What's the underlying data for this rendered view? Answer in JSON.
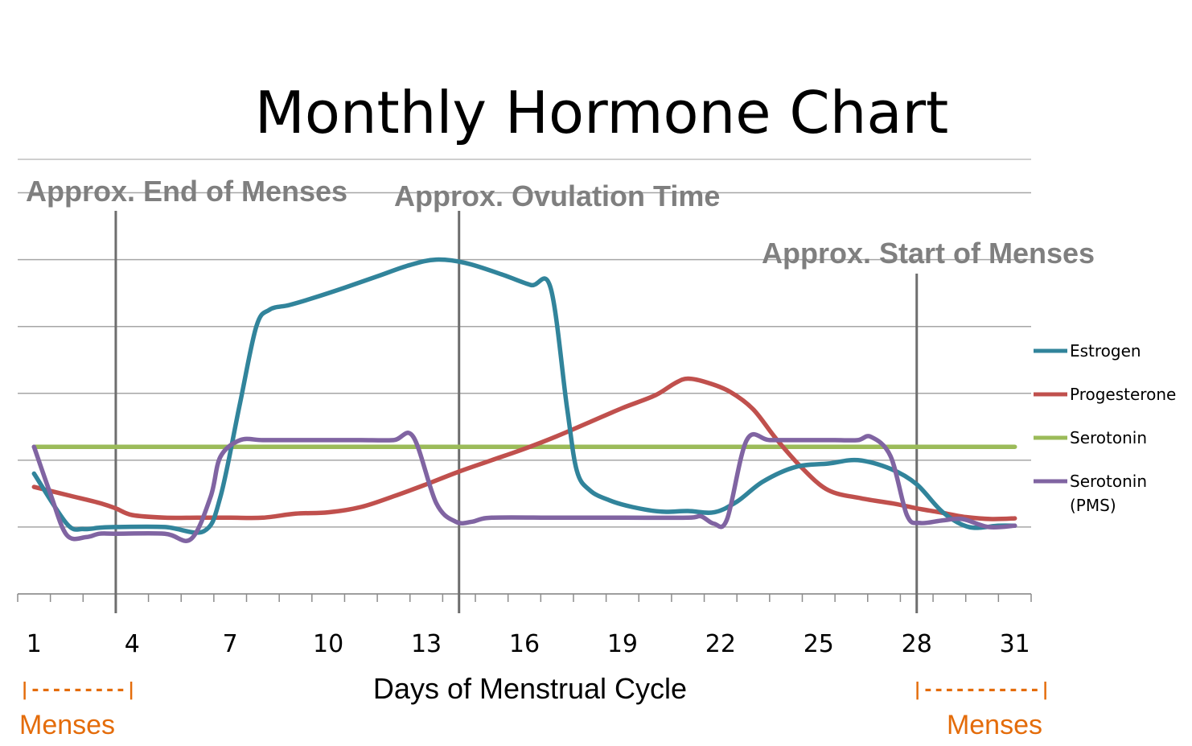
{
  "chart_data": {
    "type": "line",
    "title": "Monthly Hormone Chart",
    "xlabel": "Days of Menstrual Cycle",
    "ylabel": "",
    "xlim": [
      0.5,
      31.5
    ],
    "ylim": [
      0,
      6.5
    ],
    "xticks": [
      1,
      4,
      7,
      10,
      13,
      16,
      19,
      22,
      25,
      28,
      31
    ],
    "grid": true,
    "legend_position": "right",
    "series": [
      {
        "name": "Estrogen",
        "color": "#31849b",
        "x": [
          1,
          2,
          2.5,
          3,
          3.5,
          5,
          6.2,
          6.7,
          7.3,
          7.8,
          8.2,
          8.8,
          9.5,
          10.5,
          11.5,
          12.5,
          13.3,
          14.2,
          15.3,
          16.2,
          16.8,
          17.3,
          17.6,
          18,
          18.6,
          19.3,
          20.2,
          21,
          21.8,
          22.5,
          23.3,
          24.3,
          25.3,
          26.2,
          27.2,
          28,
          28.8,
          29.6,
          30.5,
          31
        ],
        "values": [
          1.8,
          1.05,
          0.97,
          0.99,
          1.0,
          1.0,
          0.94,
          1.45,
          2.85,
          4.0,
          4.25,
          4.32,
          4.42,
          4.58,
          4.75,
          4.92,
          5.0,
          4.95,
          4.78,
          4.62,
          4.58,
          2.8,
          1.85,
          1.55,
          1.4,
          1.3,
          1.23,
          1.24,
          1.22,
          1.38,
          1.68,
          1.9,
          1.95,
          2.0,
          1.87,
          1.64,
          1.22,
          1.0,
          1.02,
          1.02
        ]
      },
      {
        "name": "Progesterone",
        "color": "#c0504d",
        "x": [
          1,
          2,
          3,
          3.5,
          4,
          5,
          6,
          7,
          8,
          9,
          10,
          11,
          12,
          13,
          14,
          15,
          16,
          17,
          18,
          19,
          20,
          20.6,
          21,
          21.6,
          22.3,
          23,
          23.7,
          24.5,
          25.3,
          26.3,
          27.3,
          28,
          28.7,
          29.5,
          30.3,
          31
        ],
        "values": [
          1.6,
          1.48,
          1.36,
          1.28,
          1.18,
          1.14,
          1.14,
          1.14,
          1.14,
          1.2,
          1.22,
          1.3,
          1.46,
          1.64,
          1.83,
          2.0,
          2.17,
          2.36,
          2.57,
          2.78,
          2.97,
          3.15,
          3.22,
          3.16,
          3.02,
          2.76,
          2.32,
          1.88,
          1.55,
          1.43,
          1.35,
          1.28,
          1.22,
          1.15,
          1.12,
          1.13
        ]
      },
      {
        "name": "Serotonin",
        "color": "#9bbb59",
        "x": [
          1,
          31
        ],
        "values": [
          2.2,
          2.2
        ]
      },
      {
        "name": "Serotonin\n(PMS)",
        "color": "#8064a2",
        "x": [
          1,
          1.5,
          2,
          2.6,
          3,
          3.5,
          5,
          5.8,
          6.4,
          6.7,
          7.3,
          8,
          9,
          10,
          11,
          12,
          12.6,
          13.3,
          13.9,
          14.4,
          15,
          17,
          19,
          21,
          21.4,
          21.8,
          22.2,
          22.8,
          23.5,
          24.5,
          25.5,
          26.2,
          26.6,
          27.2,
          27.7,
          28.1,
          28.8,
          29.4,
          30.2,
          31
        ],
        "values": [
          2.2,
          1.5,
          0.88,
          0.85,
          0.9,
          0.9,
          0.9,
          0.82,
          1.45,
          2.05,
          2.3,
          2.3,
          2.3,
          2.3,
          2.3,
          2.3,
          2.35,
          1.36,
          1.08,
          1.08,
          1.14,
          1.14,
          1.14,
          1.14,
          1.16,
          1.05,
          1.12,
          2.3,
          2.3,
          2.3,
          2.3,
          2.3,
          2.35,
          2.06,
          1.18,
          1.06,
          1.1,
          1.12,
          1.0,
          1.02
        ]
      }
    ],
    "annotations": [
      {
        "label": "Approx. End of Menses",
        "day": 3.5
      },
      {
        "label": "Approx. Ovulation Time",
        "day": 14
      },
      {
        "label": "Approx. Start of Menses",
        "day": 28
      }
    ],
    "menses_markers": [
      {
        "bar": "|---------|",
        "label": "Menses"
      },
      {
        "bar": "|-----------|",
        "label": "Menses"
      }
    ],
    "menses_color": "#e46c0a",
    "annotation_color": "#7f7f7f",
    "gridline_color": "#a6a6a6"
  }
}
